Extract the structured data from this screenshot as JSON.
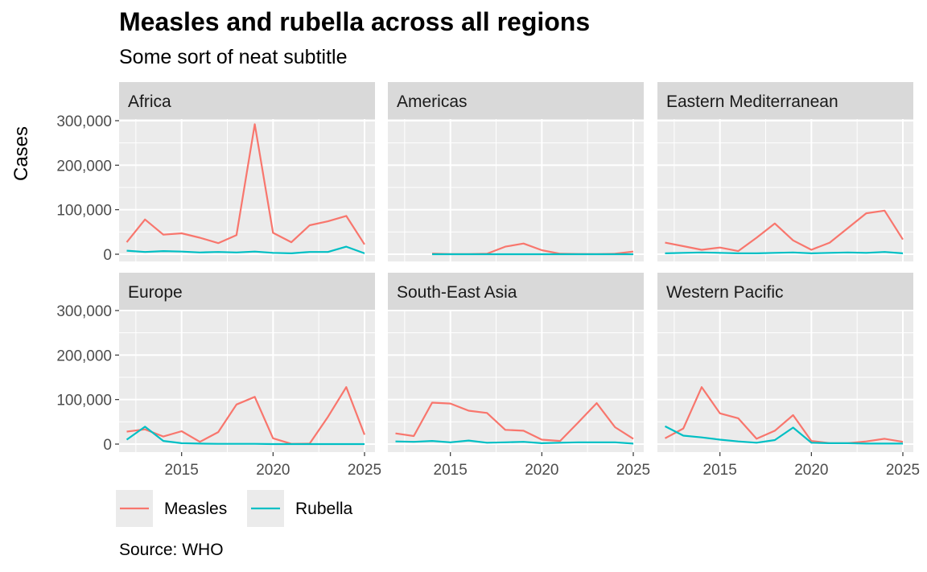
{
  "title": "Measles and rubella across all regions",
  "subtitle": "Some sort of neat subtitle",
  "caption": "Source: WHO",
  "chart_data": {
    "type": "line",
    "facet_layout": "2 rows x 3 columns",
    "ylabel": "Cases",
    "xlabel": "",
    "xlim": [
      2012,
      2025
    ],
    "ylim": [
      0,
      300000
    ],
    "x_ticks": [
      2015,
      2020,
      2025
    ],
    "y_ticks": [
      0,
      100000,
      200000,
      300000
    ],
    "y_tick_labels": [
      "0",
      "100,000",
      "200,000",
      "300,000"
    ],
    "grid": true,
    "legend_position": "bottom",
    "x": [
      2012,
      2013,
      2014,
      2015,
      2016,
      2017,
      2018,
      2019,
      2020,
      2021,
      2022,
      2023,
      2024,
      2025
    ],
    "series_colors": {
      "Measles": "#F8766D",
      "Rubella": "#00BFC4"
    },
    "legend": [
      "Measles",
      "Rubella"
    ],
    "facets": [
      {
        "name": "Africa",
        "series": [
          {
            "name": "Measles",
            "values": [
              27000,
              78000,
              44000,
              47000,
              37000,
              25000,
              43000,
              292000,
              48000,
              27000,
              65000,
              74000,
              86000,
              22000
            ]
          },
          {
            "name": "Rubella",
            "values": [
              8000,
              5000,
              7000,
              6000,
              4000,
              5000,
              4000,
              6000,
              3000,
              2000,
              5000,
              5000,
              17000,
              2000
            ]
          }
        ]
      },
      {
        "name": "Americas",
        "series": [
          {
            "name": "Measles",
            "values": [
              null,
              null,
              1500,
              300,
              200,
              1000,
              17000,
              24000,
              9000,
              1000,
              500,
              300,
              1000,
              6000
            ]
          },
          {
            "name": "Rubella",
            "values": [
              null,
              null,
              0,
              0,
              0,
              0,
              0,
              0,
              0,
              0,
              0,
              0,
              0,
              0
            ]
          }
        ]
      },
      {
        "name": "Eastern Mediterranean",
        "series": [
          {
            "name": "Measles",
            "values": [
              26000,
              18000,
              10000,
              15000,
              7000,
              37000,
              69000,
              31000,
              10000,
              26000,
              59000,
              92000,
              98000,
              33000
            ]
          },
          {
            "name": "Rubella",
            "values": [
              2000,
              3000,
              4000,
              3000,
              2000,
              2000,
              3000,
              4000,
              2000,
              3000,
              4000,
              3000,
              5000,
              2000
            ]
          }
        ]
      },
      {
        "name": "Europe",
        "series": [
          {
            "name": "Measles",
            "values": [
              28000,
              33000,
              17000,
              29000,
              5000,
              27000,
              89000,
              106000,
              13000,
              500,
              1000,
              61000,
              128000,
              21000
            ]
          },
          {
            "name": "Rubella",
            "values": [
              10000,
              39000,
              7000,
              2000,
              1000,
              500,
              500,
              500,
              0,
              0,
              0,
              0,
              0,
              0
            ]
          }
        ]
      },
      {
        "name": "South-East Asia",
        "series": [
          {
            "name": "Measles",
            "values": [
              24000,
              18000,
              93000,
              91000,
              75000,
              70000,
              32000,
              30000,
              10000,
              7000,
              49000,
              92000,
              38000,
              12000
            ]
          },
          {
            "name": "Rubella",
            "values": [
              6000,
              5000,
              7000,
              4000,
              8000,
              3000,
              4000,
              5000,
              2000,
              3000,
              4000,
              4000,
              4000,
              1000
            ]
          }
        ]
      },
      {
        "name": "Western Pacific",
        "series": [
          {
            "name": "Measles",
            "values": [
              13000,
              35000,
              128000,
              69000,
              58000,
              12000,
              30000,
              65000,
              7000,
              2000,
              2000,
              6000,
              12000,
              5000
            ]
          },
          {
            "name": "Rubella",
            "values": [
              40000,
              19000,
              15000,
              10000,
              6000,
              3000,
              9000,
              37000,
              3000,
              2000,
              2000,
              1000,
              1000,
              1000
            ]
          }
        ]
      }
    ]
  }
}
